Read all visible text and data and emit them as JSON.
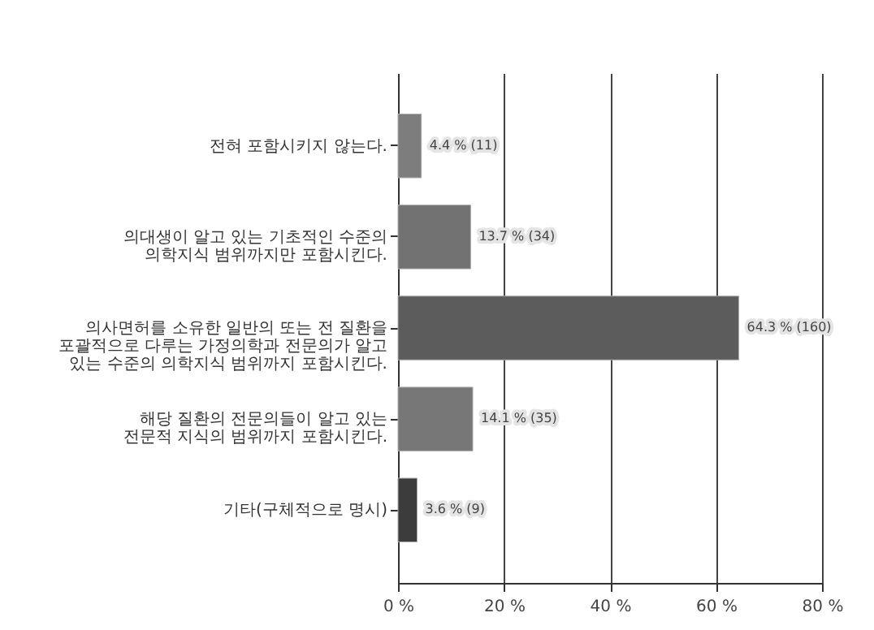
{
  "chart_data": {
    "type": "bar",
    "orientation": "horizontal",
    "categories": [
      "전혀 포함시키지 않는다.",
      "의대생이 알고 있는 기초적인 수준의\n의학지식 범위까지만 포함시킨다.",
      "의사면허를 소유한 일반의 또는 전 질환을\n포괄적으로 다루는 가정의학과 전문의가 알고\n있는 수준의 의학지식 범위까지 포함시킨다.",
      "해당 질환의 전문의들이 알고 있는\n전문적 지식의 범위까지 포함시킨다.",
      "기타(구체적으로 명시)"
    ],
    "values": [
      4.4,
      13.7,
      64.3,
      14.1,
      3.6
    ],
    "colors": [
      "#7d7d7d",
      "#727272",
      "#5c5c5c",
      "#777777",
      "#3c3c3c"
    ],
    "value_labels": [
      "4.4 % (11)",
      "13.7 % (34)",
      "64.3 % (160)",
      "14.1 % (35)",
      "3.6 % (9)"
    ],
    "xlim": [
      0,
      80
    ],
    "xticks": [
      {
        "value": 0,
        "label": "0 %"
      },
      {
        "value": 20,
        "label": "20 %"
      },
      {
        "value": 40,
        "label": "40 %"
      },
      {
        "value": 60,
        "label": "60 %"
      },
      {
        "value": 80,
        "label": "80 %"
      }
    ],
    "grid": "x"
  }
}
